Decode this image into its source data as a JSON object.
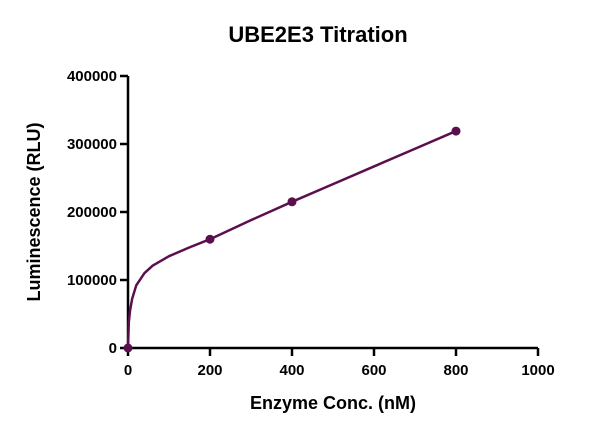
{
  "chart_data": {
    "type": "line",
    "title": "UBE2E3 Titration",
    "xlabel": "Enzyme Conc. (nM)",
    "ylabel": "Luminescence (RLU)",
    "xlim": [
      0,
      1000
    ],
    "ylim": [
      0,
      400000
    ],
    "x_ticks": [
      "0",
      "200",
      "400",
      "600",
      "800",
      "1000"
    ],
    "y_ticks": [
      "0",
      "100000",
      "200000",
      "300000",
      "400000"
    ],
    "grid": false,
    "legend": "none",
    "colors": {
      "series": "#5b0f4e",
      "axis": "#000000"
    },
    "series": [
      {
        "points": [
          {
            "x": 0,
            "y": 0
          },
          {
            "x": 200,
            "y": 160000
          },
          {
            "x": 400,
            "y": 215000
          },
          {
            "x": 800,
            "y": 319000
          }
        ],
        "fit_curve": [
          {
            "x": 0,
            "y": 0
          },
          {
            "x": 2,
            "y": 38000
          },
          {
            "x": 5,
            "y": 55000
          },
          {
            "x": 10,
            "y": 72000
          },
          {
            "x": 20,
            "y": 92000
          },
          {
            "x": 40,
            "y": 110000
          },
          {
            "x": 60,
            "y": 121000
          },
          {
            "x": 100,
            "y": 135000
          },
          {
            "x": 150,
            "y": 148000
          },
          {
            "x": 200,
            "y": 160000
          },
          {
            "x": 300,
            "y": 188000
          },
          {
            "x": 400,
            "y": 215000
          },
          {
            "x": 500,
            "y": 241000
          },
          {
            "x": 600,
            "y": 267000
          },
          {
            "x": 700,
            "y": 293000
          },
          {
            "x": 800,
            "y": 319000
          }
        ]
      }
    ]
  }
}
